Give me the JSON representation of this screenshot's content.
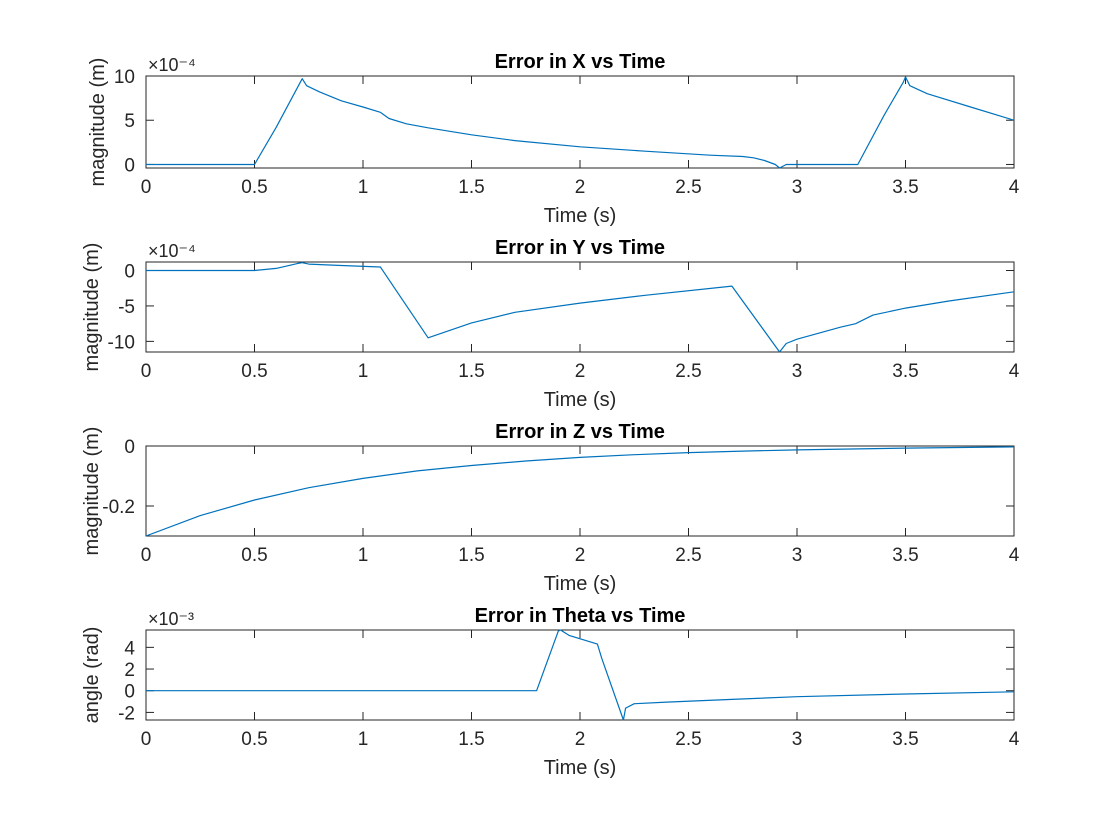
{
  "chart_data": [
    {
      "type": "line",
      "title": "Error in X vs Time",
      "xlabel": "Time (s)",
      "ylabel": "magnitude (m)",
      "exponent_label": "×10⁻⁴",
      "xlim": [
        0,
        4
      ],
      "ylim": [
        -0.4,
        10
      ],
      "xticks": [
        0,
        0.5,
        1,
        1.5,
        2,
        2.5,
        3,
        3.5,
        4
      ],
      "xtick_labels": [
        "0",
        "0.5",
        "1",
        "1.5",
        "2",
        "2.5",
        "3",
        "3.5",
        "4"
      ],
      "yticks": [
        0,
        5,
        10
      ],
      "ytick_labels": [
        "0",
        "5",
        "10"
      ],
      "grid": false,
      "series": [
        {
          "color": "#0072BD",
          "x": [
            0,
            0.5,
            0.6,
            0.72,
            0.74,
            0.8,
            0.9,
            1.0,
            1.08,
            1.12,
            1.2,
            1.3,
            1.5,
            1.7,
            2.0,
            2.3,
            2.6,
            2.75,
            2.8,
            2.85,
            2.9,
            2.92,
            2.95,
            3.0,
            3.28,
            3.4,
            3.49,
            3.5,
            3.52,
            3.6,
            3.8,
            4.0
          ],
          "y": [
            0,
            0,
            4.2,
            9.7,
            8.9,
            8.2,
            7.2,
            6.5,
            5.9,
            5.2,
            4.6,
            4.15,
            3.35,
            2.7,
            2.0,
            1.5,
            1.05,
            0.9,
            0.75,
            0.45,
            0.0,
            -0.4,
            0,
            0,
            0,
            5.5,
            9.3,
            9.9,
            8.9,
            8.0,
            6.5,
            5.0
          ]
        }
      ]
    },
    {
      "type": "line",
      "title": "Error in Y vs Time",
      "xlabel": "Time (s)",
      "ylabel": "magnitude (m)",
      "exponent_label": "×10⁻⁴",
      "xlim": [
        0,
        4
      ],
      "ylim": [
        -11.5,
        1.2
      ],
      "xticks": [
        0,
        0.5,
        1,
        1.5,
        2,
        2.5,
        3,
        3.5,
        4
      ],
      "xtick_labels": [
        "0",
        "0.5",
        "1",
        "1.5",
        "2",
        "2.5",
        "3",
        "3.5",
        "4"
      ],
      "yticks": [
        -10,
        -5,
        0
      ],
      "ytick_labels": [
        "-10",
        "-5",
        "0"
      ],
      "grid": false,
      "series": [
        {
          "color": "#0072BD",
          "x": [
            0,
            0.5,
            0.6,
            0.7,
            0.72,
            0.75,
            0.9,
            1.08,
            1.3,
            1.5,
            1.7,
            2.0,
            2.3,
            2.7,
            2.92,
            2.95,
            3.0,
            3.2,
            3.27,
            3.35,
            3.5,
            3.7,
            4.0
          ],
          "y": [
            0,
            0,
            0.3,
            1.0,
            1.1,
            0.9,
            0.7,
            0.5,
            -9.5,
            -7.4,
            -5.9,
            -4.6,
            -3.5,
            -2.2,
            -11.5,
            -10.3,
            -9.7,
            -8.0,
            -7.5,
            -6.3,
            -5.3,
            -4.3,
            -3.0
          ]
        }
      ]
    },
    {
      "type": "line",
      "title": "Error in Z vs Time",
      "xlabel": "Time (s)",
      "ylabel": "magnitude (m)",
      "exponent_label": "",
      "xlim": [
        0,
        4
      ],
      "ylim": [
        -0.3,
        0
      ],
      "xticks": [
        0,
        0.5,
        1,
        1.5,
        2,
        2.5,
        3,
        3.5,
        4
      ],
      "xtick_labels": [
        "0",
        "0.5",
        "1",
        "1.5",
        "2",
        "2.5",
        "3",
        "3.5",
        "4"
      ],
      "yticks": [
        -0.2,
        0
      ],
      "ytick_labels": [
        "-0.2",
        "0"
      ],
      "grid": false,
      "series": [
        {
          "color": "#0072BD",
          "x": [
            0,
            0.25,
            0.5,
            0.75,
            1.0,
            1.25,
            1.5,
            1.75,
            2.0,
            2.25,
            2.5,
            2.75,
            3.0,
            3.25,
            3.5,
            3.75,
            4.0
          ],
          "y": [
            -0.3,
            -0.232,
            -0.18,
            -0.139,
            -0.108,
            -0.083,
            -0.065,
            -0.05,
            -0.038,
            -0.029,
            -0.022,
            -0.017,
            -0.013,
            -0.01,
            -0.007,
            -0.005,
            -0.003
          ]
        }
      ]
    },
    {
      "type": "line",
      "title": "Error in Theta vs Time",
      "xlabel": "Time (s)",
      "ylabel": "angle (rad)",
      "exponent_label": "×10⁻³",
      "xlim": [
        0,
        4
      ],
      "ylim": [
        -2.7,
        5.6
      ],
      "xticks": [
        0,
        0.5,
        1,
        1.5,
        2,
        2.5,
        3,
        3.5,
        4
      ],
      "xtick_labels": [
        "0",
        "0.5",
        "1",
        "1.5",
        "2",
        "2.5",
        "3",
        "3.5",
        "4"
      ],
      "yticks": [
        -2,
        0,
        2,
        4
      ],
      "ytick_labels": [
        "-2",
        "0",
        "2",
        "4"
      ],
      "grid": false,
      "series": [
        {
          "color": "#0072BD",
          "x": [
            0,
            1.8,
            1.9,
            1.91,
            1.95,
            2.08,
            2.1,
            2.2,
            2.21,
            2.25,
            2.4,
            2.7,
            3.0,
            3.5,
            4.0
          ],
          "y": [
            0,
            0,
            5.5,
            5.6,
            5.1,
            4.3,
            3.0,
            -2.7,
            -1.6,
            -1.2,
            -1.05,
            -0.8,
            -0.55,
            -0.3,
            -0.1
          ]
        }
      ]
    }
  ]
}
